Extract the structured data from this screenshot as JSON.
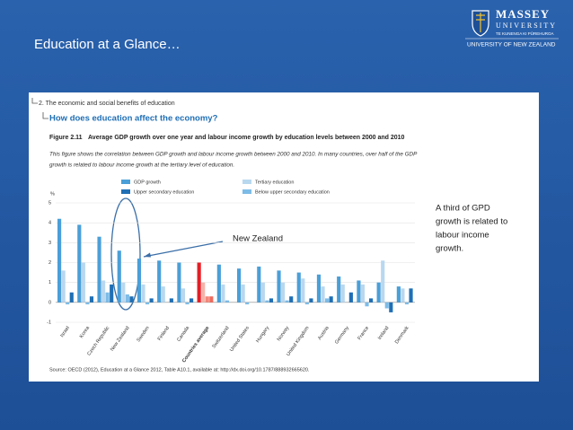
{
  "slide": {
    "title": "Education at a Glance…",
    "logo": {
      "name": "MASSEY",
      "sub": "UNIVERSITY",
      "motto": "TE KUNENGA KI PŪREHUROA",
      "tagline": "UNIVERSITY OF NEW ZEALAND"
    },
    "breadcrumb": "2. The economic and social benefits of education",
    "question": "How does education affect the economy?",
    "figure_number": "Figure 2.11",
    "figure_title": "Average GDP growth over one year and labour income growth by education levels between 2000 and 2010",
    "description": [
      "This figure shows the correlation between GDP growth and labour income growth between 2000 and 2010. In many countries, over half of the GDP",
      "growth is related to labour income growth at the tertiary level of education."
    ],
    "source": "Source: OECD (2012), Education at a Glance 2012, Table A10.1, available at: http://dx.doi.org/10.1787/888932665620.",
    "note": [
      "A third of GPD",
      "growth is related to",
      "labour income",
      "growth."
    ]
  },
  "chart_data": {
    "type": "bar",
    "ylabel": "%",
    "annotation": "New Zealand",
    "categories": [
      "Israel",
      "Korea",
      "Czech Republic",
      "New Zealand",
      "Sweden",
      "Finland",
      "Canada",
      "Countries average",
      "Switzerland",
      "United States",
      "Hungary",
      "Norway",
      "United Kingdom",
      "Austria",
      "Germany",
      "France",
      "Ireland",
      "Denmark"
    ],
    "series": [
      {
        "name": "GDP growth",
        "color": "#4a9fd8",
        "values": [
          4.2,
          3.9,
          3.3,
          2.6,
          2.2,
          2.1,
          2.0,
          2.0,
          1.9,
          1.7,
          1.8,
          1.6,
          1.5,
          1.4,
          1.3,
          1.1,
          1.0,
          0.8
        ]
      },
      {
        "name": "Tertiary education",
        "color": "#b8d8f0",
        "values": [
          1.6,
          2.0,
          1.1,
          1.0,
          0.9,
          0.8,
          0.7,
          1.0,
          0.9,
          0.9,
          1.0,
          1.0,
          1.2,
          0.8,
          0.9,
          0.9,
          2.1,
          0.7
        ]
      },
      {
        "name": "Below upper secondary education",
        "color": "#7dbce8",
        "values": [
          -0.1,
          -0.1,
          0.5,
          0.4,
          -0.1,
          0.0,
          -0.1,
          0.3,
          0.1,
          -0.1,
          0.1,
          0.1,
          -0.1,
          0.2,
          0.0,
          -0.2,
          -0.3,
          -0.1
        ]
      },
      {
        "name": "Upper secondary education",
        "color": "#1f6fb5",
        "values": [
          0.5,
          0.3,
          0.9,
          0.3,
          0.2,
          0.2,
          0.2,
          0.3,
          0.0,
          0.0,
          0.2,
          0.3,
          0.2,
          0.3,
          0.5,
          0.2,
          -0.5,
          0.7
        ]
      }
    ],
    "highlight_category": "Countries average",
    "highlight_colors": [
      "#e41e26",
      "#f7b3a8",
      "#f4877a",
      "#f06a5c"
    ],
    "ylim": [
      -1,
      5
    ],
    "yticks": [
      -1,
      0,
      1,
      2,
      3,
      4,
      5
    ],
    "grid": true
  }
}
